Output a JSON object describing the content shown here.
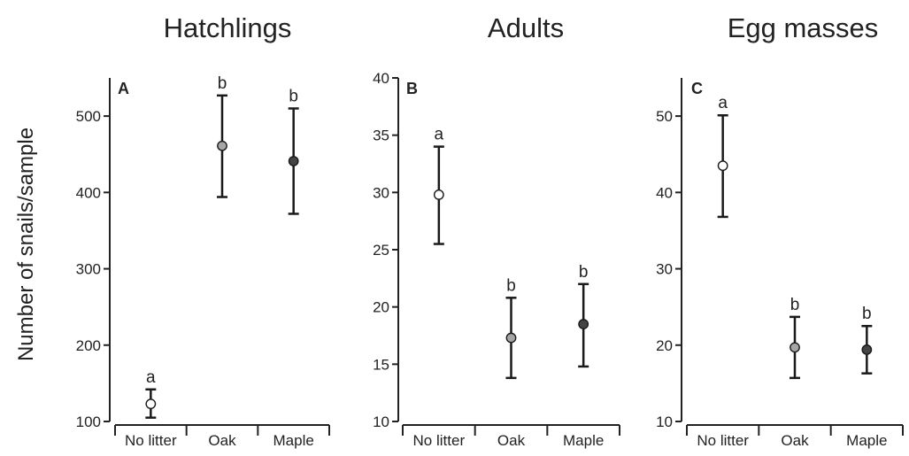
{
  "figure": {
    "ylabel": "Number of snails/sample"
  },
  "chart_data": [
    {
      "type": "scatter",
      "panel_label": "A",
      "title": "Hatchlings",
      "ylabel": "Number of snails/sample",
      "ylim": [
        100,
        550
      ],
      "yticks": [
        100,
        200,
        300,
        400,
        500
      ],
      "categories": [
        "No litter",
        "Oak",
        "Maple"
      ],
      "values": [
        123,
        461,
        441
      ],
      "error_low": [
        105,
        394,
        372
      ],
      "error_high": [
        142,
        527,
        510
      ],
      "letters": [
        "a",
        "b",
        "b"
      ],
      "marker_colors": [
        "#ffffff",
        "#a6a6a6",
        "#444444"
      ]
    },
    {
      "type": "scatter",
      "panel_label": "B",
      "title": "Adults",
      "ylim": [
        10,
        40
      ],
      "yticks": [
        10,
        15,
        20,
        25,
        30,
        35,
        40
      ],
      "categories": [
        "No litter",
        "Oak",
        "Maple"
      ],
      "values": [
        29.8,
        17.3,
        18.5
      ],
      "error_low": [
        25.5,
        13.8,
        14.8
      ],
      "error_high": [
        34.0,
        20.8,
        22.0
      ],
      "letters": [
        "a",
        "b",
        "b"
      ],
      "marker_colors": [
        "#ffffff",
        "#a6a6a6",
        "#444444"
      ]
    },
    {
      "type": "scatter",
      "panel_label": "C",
      "title": "Egg masses",
      "ylim": [
        10,
        55
      ],
      "yticks": [
        10,
        20,
        30,
        40,
        50
      ],
      "categories": [
        "No litter",
        "Oak",
        "Maple"
      ],
      "values": [
        43.5,
        19.7,
        19.4
      ],
      "error_low": [
        36.8,
        15.7,
        16.3
      ],
      "error_high": [
        50.1,
        23.7,
        22.5
      ],
      "letters": [
        "a",
        "b",
        "b"
      ],
      "marker_colors": [
        "#ffffff",
        "#a6a6a6",
        "#444444"
      ]
    }
  ]
}
